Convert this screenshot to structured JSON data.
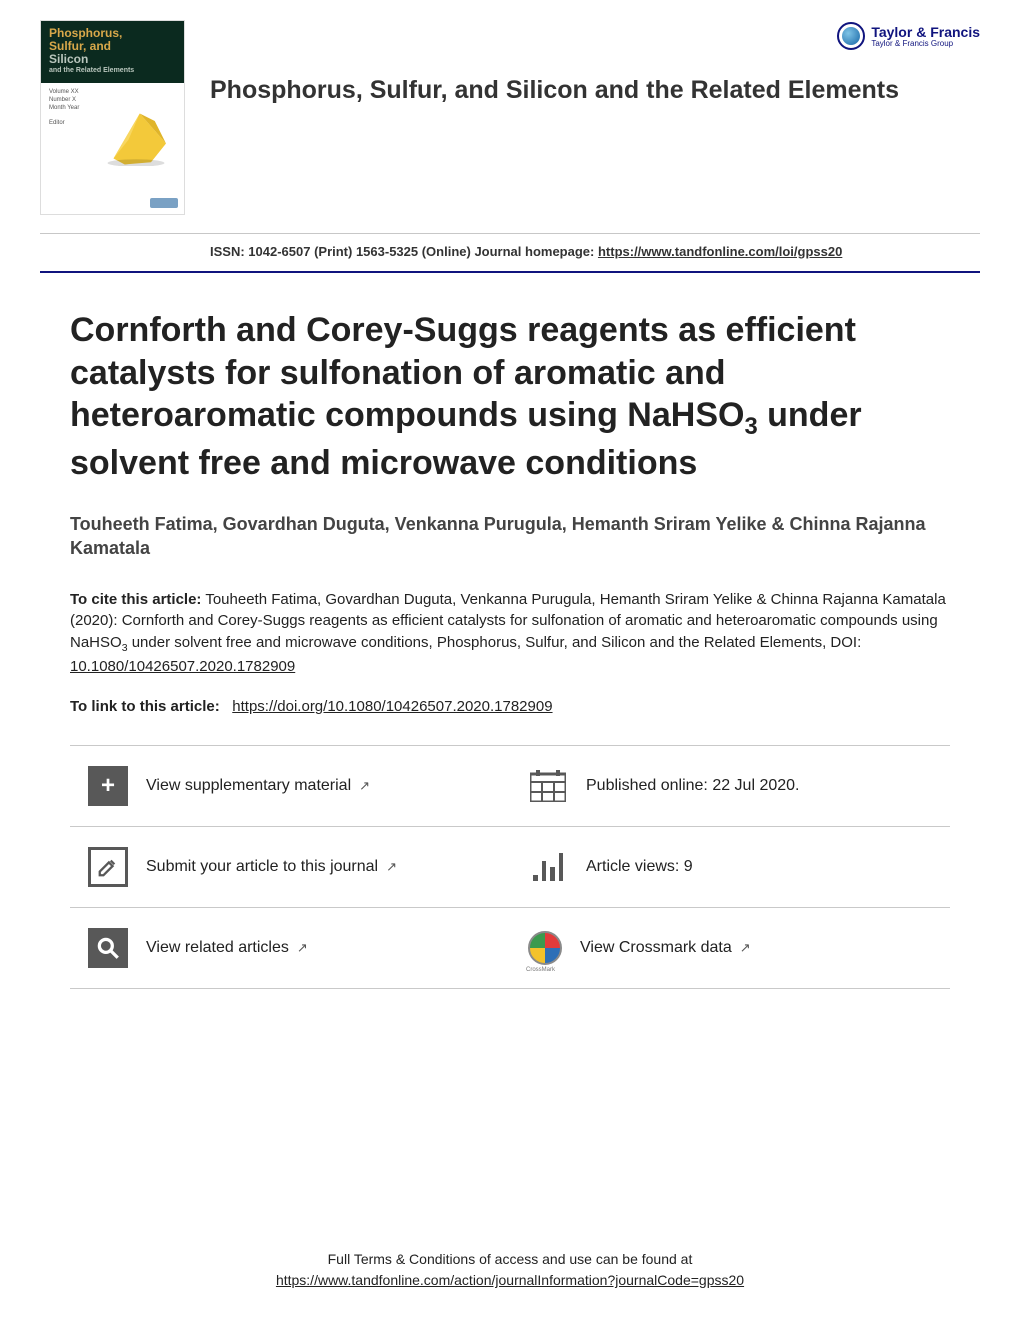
{
  "publisher": {
    "name": "Taylor & Francis",
    "sub": "Taylor & Francis Group"
  },
  "journal": {
    "title": "Phosphorus, Sulfur, and Silicon and the Related Elements",
    "cover_line1": "Phosphorus,",
    "cover_line2": "Sulfur, and",
    "cover_line3": "Silicon",
    "cover_line4": "and the Related Elements",
    "issn_text": "ISSN: 1042-6507 (Print) 1563-5325 (Online) Journal homepage: ",
    "homepage_url": "https://www.tandfonline.com/loi/gpss20"
  },
  "article": {
    "title_html": "Cornforth and Corey-Suggs reagents as efficient catalysts for sulfonation of aromatic and heteroaromatic compounds using NaHSO<sub>3</sub> under solvent free and microwave conditions",
    "authors": "Touheeth Fatima, Govardhan Duguta, Venkanna Purugula, Hemanth Sriram Yelike & Chinna Rajanna Kamatala",
    "cite_label": "To cite this article:",
    "cite_body_html": " Touheeth Fatima, Govardhan Duguta, Venkanna Purugula, Hemanth Sriram Yelike & Chinna Rajanna Kamatala (2020): Cornforth and Corey-Suggs reagents as efficient catalysts for sulfonation of aromatic and heteroaromatic compounds using NaHSO<sub>3</sub> under solvent free and microwave conditions, Phosphorus, Sulfur, and Silicon and the Related Elements, DOI: ",
    "doi_short": "10.1080/10426507.2020.1782909",
    "link_label": "To link to this article:",
    "doi_url": "https://doi.org/10.1080/10426507.2020.1782909"
  },
  "actions": {
    "supplementary": "View supplementary material",
    "published": "Published online: 22 Jul 2020.",
    "submit": "Submit your article to this journal",
    "views": "Article views: 9",
    "related": "View related articles",
    "crossmark": "View Crossmark data"
  },
  "footer": {
    "line1": "Full Terms & Conditions of access and use can be found at",
    "url": "https://www.tandfonline.com/action/journalInformation?journalCode=gpss20"
  },
  "colors": {
    "rule_blue": "#10147e",
    "icon_gray": "#585858",
    "crystal": "#f3c93a"
  }
}
